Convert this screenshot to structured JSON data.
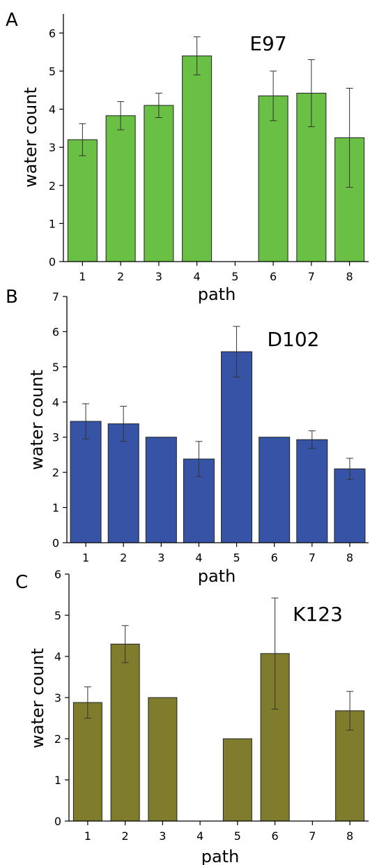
{
  "chart_data": [
    {
      "type": "bar",
      "panel": "A",
      "title": "E97",
      "xlabel": "path",
      "ylabel": "water count",
      "categories": [
        "1",
        "2",
        "3",
        "4",
        "5",
        "6",
        "7",
        "8"
      ],
      "values": [
        3.2,
        3.83,
        4.1,
        5.4,
        null,
        4.35,
        4.42,
        3.25
      ],
      "errors": [
        0.42,
        0.37,
        0.32,
        0.5,
        null,
        0.65,
        0.88,
        1.3
      ],
      "ylim": [
        0,
        6.5
      ],
      "yticks": [
        "0",
        "1",
        "2",
        "3",
        "4",
        "5",
        "6"
      ],
      "color": "#6abf45",
      "grid": false
    },
    {
      "type": "bar",
      "panel": "B",
      "title": "D102",
      "xlabel": "path",
      "ylabel": "water count",
      "categories": [
        "1",
        "2",
        "3",
        "4",
        "5",
        "6",
        "7",
        "8"
      ],
      "values": [
        3.45,
        3.38,
        3.0,
        2.38,
        5.43,
        3.0,
        2.93,
        2.1
      ],
      "errors": [
        0.5,
        0.5,
        null,
        0.5,
        0.72,
        null,
        0.25,
        0.3
      ],
      "ylim": [
        0,
        7
      ],
      "yticks": [
        "0",
        "1",
        "2",
        "3",
        "4",
        "5",
        "6",
        "7"
      ],
      "color": "#3753a5",
      "grid": false
    },
    {
      "type": "bar",
      "panel": "C",
      "title": "K123",
      "xlabel": "path",
      "ylabel": "water count",
      "categories": [
        "1",
        "2",
        "3",
        "4",
        "5",
        "6",
        "7",
        "8"
      ],
      "values": [
        2.88,
        4.3,
        3.0,
        null,
        2.0,
        4.07,
        null,
        2.68
      ],
      "errors": [
        0.38,
        0.45,
        null,
        null,
        null,
        1.35,
        null,
        0.47
      ],
      "ylim": [
        0,
        6
      ],
      "yticks": [
        "0",
        "1",
        "2",
        "3",
        "4",
        "5",
        "6"
      ],
      "color": "#7f7c2d",
      "grid": false
    }
  ]
}
